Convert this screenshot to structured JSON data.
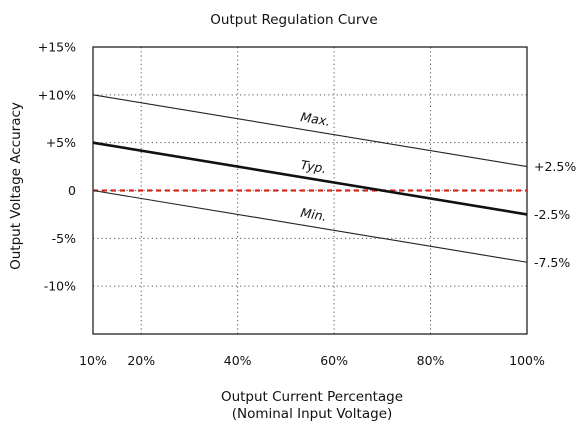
{
  "chart_data": {
    "type": "line",
    "title": "Output Regulation Curve",
    "xlabel_line1": "Output Current Percentage",
    "xlabel_line2": "(Nominal Input Voltage)",
    "ylabel": "Output Voltage Accuracy",
    "xlim": [
      10,
      100
    ],
    "ylim": [
      -15,
      15
    ],
    "x_ticks": [
      {
        "value": 10,
        "label": "10%"
      },
      {
        "value": 20,
        "label": "20%"
      },
      {
        "value": 40,
        "label": "40%"
      },
      {
        "value": 60,
        "label": "60%"
      },
      {
        "value": 80,
        "label": "80%"
      },
      {
        "value": 100,
        "label": "100%"
      }
    ],
    "y_ticks": [
      {
        "value": 15,
        "label": "+15%"
      },
      {
        "value": 10,
        "label": "+10%"
      },
      {
        "value": 5,
        "label": "+5%"
      },
      {
        "value": 0,
        "label": "0"
      },
      {
        "value": -5,
        "label": "-5%"
      },
      {
        "value": -10,
        "label": "-10%"
      }
    ],
    "grid": true,
    "series": [
      {
        "name": "Max.",
        "x": [
          10,
          100
        ],
        "y": [
          10,
          2.5
        ],
        "color": "#222222",
        "style": "thin"
      },
      {
        "name": "Typ.",
        "x": [
          10,
          100
        ],
        "y": [
          5,
          -2.5
        ],
        "color": "#111111",
        "style": "bold"
      },
      {
        "name": "Min.",
        "x": [
          10,
          100
        ],
        "y": [
          0,
          -7.5
        ],
        "color": "#222222",
        "style": "thin"
      }
    ],
    "reference_line": {
      "y": 0,
      "color": "#d62a1e"
    },
    "right_labels": [
      "+2.5%",
      "-2.5%",
      "-7.5%"
    ]
  }
}
